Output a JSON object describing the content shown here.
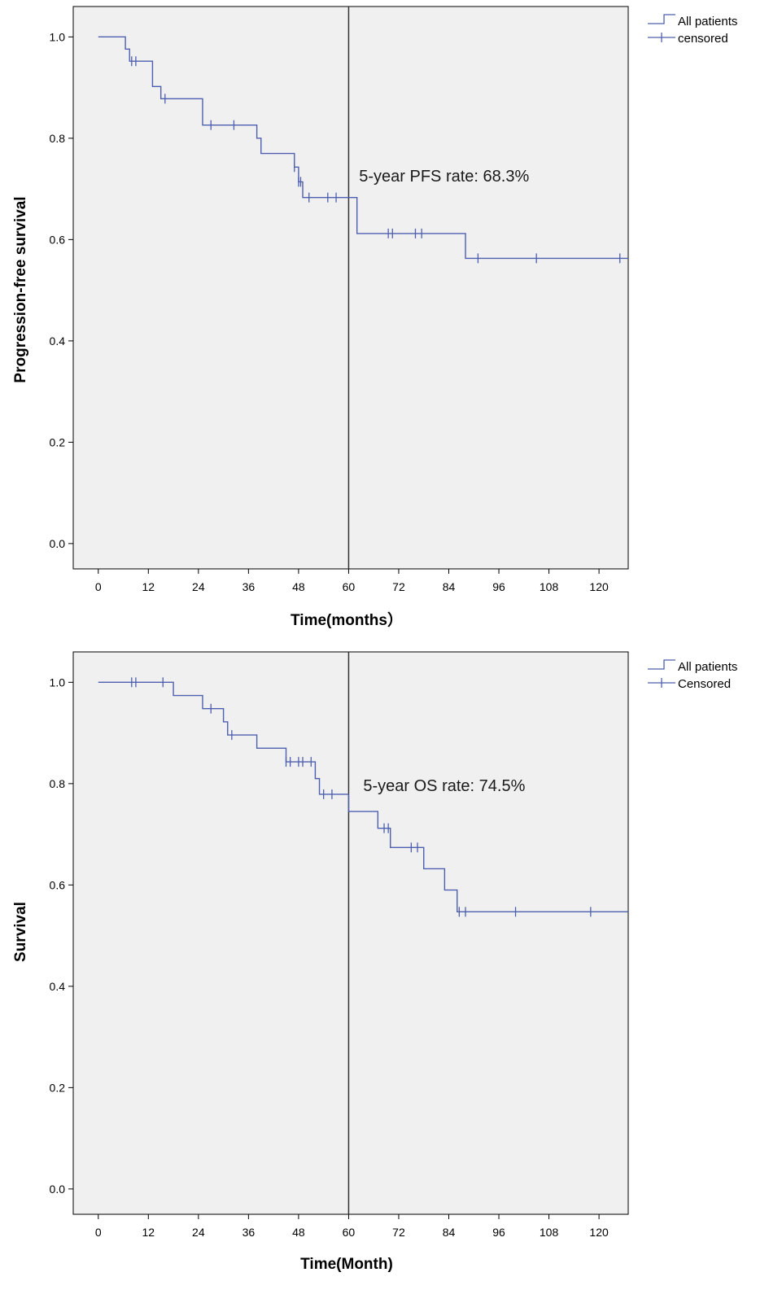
{
  "chart_data": [
    {
      "type": "line",
      "ylabel": "Progression-free survival",
      "xlabel": "Time(months）",
      "xlim": [
        -6,
        127
      ],
      "ylim": [
        -0.05,
        1.06
      ],
      "xticks": [
        0,
        12,
        24,
        36,
        48,
        60,
        72,
        84,
        96,
        108,
        120
      ],
      "xtick_labels": [
        "0",
        "12",
        "24",
        "36",
        "48",
        "60",
        "72",
        "84",
        "96",
        "108",
        "120"
      ],
      "yticks": [
        0.0,
        0.2,
        0.4,
        0.6,
        0.8,
        1.0
      ],
      "ytick_labels": [
        "0.0",
        "0.2",
        "0.4",
        "0.6",
        "0.8",
        "1.0"
      ],
      "grid": false,
      "legend_position": "top-right",
      "legend": {
        "line_label": "All patients",
        "censor_label": "censored"
      },
      "reference_line_x": 60,
      "annotation": {
        "text": "5-year PFS rate: 68.3%",
        "x": 62.5,
        "y": 0.715
      },
      "series": [
        {
          "name": "All patients",
          "steps": [
            [
              0,
              1.0
            ],
            [
              6.5,
              0.976
            ],
            [
              7.5,
              0.952
            ],
            [
              13,
              0.902
            ],
            [
              15,
              0.878
            ],
            [
              25,
              0.826
            ],
            [
              38,
              0.8
            ],
            [
              39,
              0.77
            ],
            [
              47,
              0.743
            ],
            [
              48,
              0.714
            ],
            [
              49,
              0.683
            ],
            [
              62,
              0.612
            ],
            [
              88,
              0.563
            ],
            [
              127,
              0.563
            ]
          ],
          "censored": [
            [
              8,
              0.952
            ],
            [
              9,
              0.952
            ],
            [
              16,
              0.878
            ],
            [
              27,
              0.826
            ],
            [
              32.5,
              0.826
            ],
            [
              47,
              0.743
            ],
            [
              48,
              0.714
            ],
            [
              48.5,
              0.714
            ],
            [
              50.5,
              0.683
            ],
            [
              55,
              0.683
            ],
            [
              57,
              0.683
            ],
            [
              69.5,
              0.612
            ],
            [
              70.5,
              0.612
            ],
            [
              76,
              0.612
            ],
            [
              77.5,
              0.612
            ],
            [
              91,
              0.563
            ],
            [
              105,
              0.563
            ],
            [
              125,
              0.563
            ]
          ]
        }
      ]
    },
    {
      "type": "line",
      "ylabel": "Survival",
      "xlabel": "Time(Month)",
      "xlim": [
        -6,
        127
      ],
      "ylim": [
        -0.05,
        1.06
      ],
      "xticks": [
        0,
        12,
        24,
        36,
        48,
        60,
        72,
        84,
        96,
        108,
        120
      ],
      "xtick_labels": [
        "0",
        "12",
        "24",
        "36",
        "48",
        "60",
        "72",
        "84",
        "96",
        "108",
        "120"
      ],
      "yticks": [
        0.0,
        0.2,
        0.4,
        0.6,
        0.8,
        1.0
      ],
      "ytick_labels": [
        "0.0",
        "0.2",
        "0.4",
        "0.6",
        "0.8",
        "1.0"
      ],
      "grid": false,
      "legend_position": "top-right",
      "legend": {
        "line_label": "All patients",
        "censor_label": "Censored"
      },
      "reference_line_x": 60,
      "annotation": {
        "text": "5-year OS rate: 74.5%",
        "x": 63.5,
        "y": 0.785
      },
      "series": [
        {
          "name": "All patients",
          "steps": [
            [
              0,
              1.0
            ],
            [
              18,
              0.974
            ],
            [
              25,
              0.948
            ],
            [
              30,
              0.922
            ],
            [
              31,
              0.896
            ],
            [
              38,
              0.87
            ],
            [
              45,
              0.843
            ],
            [
              52,
              0.81
            ],
            [
              53,
              0.779
            ],
            [
              60,
              0.745
            ],
            [
              67,
              0.712
            ],
            [
              70,
              0.674
            ],
            [
              78,
              0.632
            ],
            [
              83,
              0.59
            ],
            [
              86,
              0.547
            ],
            [
              127,
              0.547
            ]
          ],
          "censored": [
            [
              8,
              1.0
            ],
            [
              9,
              1.0
            ],
            [
              15.5,
              1.0
            ],
            [
              27,
              0.948
            ],
            [
              32,
              0.896
            ],
            [
              45,
              0.843
            ],
            [
              46,
              0.843
            ],
            [
              48,
              0.843
            ],
            [
              49,
              0.843
            ],
            [
              51,
              0.843
            ],
            [
              54,
              0.779
            ],
            [
              56,
              0.779
            ],
            [
              68.5,
              0.712
            ],
            [
              69.5,
              0.712
            ],
            [
              75,
              0.674
            ],
            [
              76.5,
              0.674
            ],
            [
              86.5,
              0.547
            ],
            [
              88,
              0.547
            ],
            [
              100,
              0.547
            ],
            [
              118,
              0.547
            ]
          ]
        }
      ]
    }
  ],
  "colors": {
    "curve": "#4d5fae",
    "plot_background": "#f0f0f0",
    "reference_line": "#333333"
  }
}
